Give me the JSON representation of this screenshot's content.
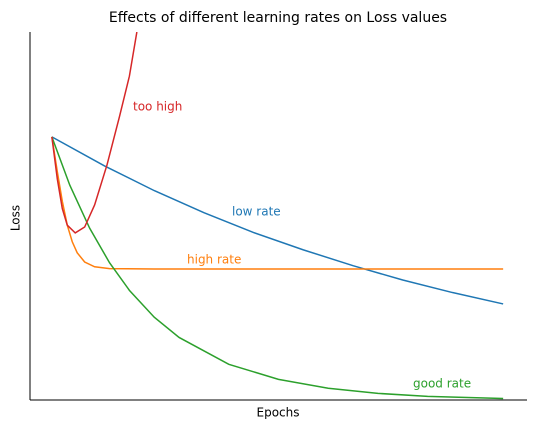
{
  "chart_data": {
    "type": "line",
    "title": "Effects of different learning rates on Loss values",
    "x_label": "Epochs",
    "y_label": "Loss",
    "xlim": [
      0,
      100
    ],
    "ylim": [
      0,
      100
    ],
    "series": [
      {
        "name": "low rate",
        "color": "#1f77b4",
        "x": [
          4.4,
          15,
          25,
          35,
          45,
          55,
          65,
          75,
          85,
          95.2
        ],
        "values": [
          71.5,
          63.6,
          56.9,
          50.9,
          45.5,
          40.8,
          36.5,
          32.6,
          29.2,
          26.1
        ]
      },
      {
        "name": "high rate",
        "color": "#ff7f0e",
        "x": [
          4.4,
          5.5,
          6.5,
          7.5,
          8.5,
          9.5,
          11,
          13,
          16,
          25,
          95.2
        ],
        "values": [
          71.5,
          62,
          54,
          47.5,
          43,
          40,
          37.5,
          36.2,
          35.7,
          35.6,
          35.6
        ]
      },
      {
        "name": "good rate",
        "color": "#2ca02c",
        "x": [
          4.4,
          8,
          12,
          16,
          20,
          25,
          30,
          40,
          50,
          60,
          70,
          80,
          95.2
        ],
        "values": [
          71.5,
          58.4,
          46.7,
          37.3,
          29.8,
          22.5,
          17.0,
          9.7,
          5.6,
          3.2,
          1.8,
          1.0,
          0.4
        ]
      },
      {
        "name": "too high",
        "color": "#d62728",
        "x": [
          4.4,
          5.5,
          6.5,
          7.5,
          9.1,
          11,
          13,
          15.5,
          18,
          20,
          21.5
        ],
        "values": [
          71.5,
          60,
          52,
          47.5,
          45.4,
          47,
          53,
          63.9,
          77,
          88,
          100
        ]
      }
    ]
  }
}
